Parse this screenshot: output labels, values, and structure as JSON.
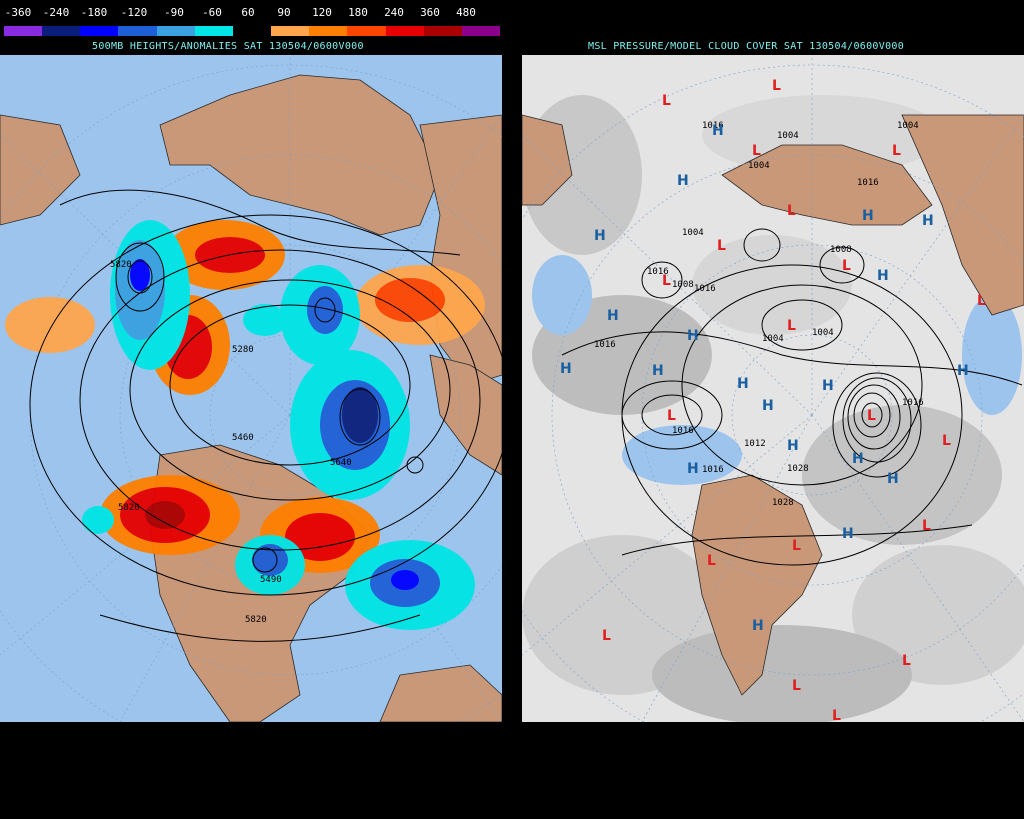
{
  "legend": {
    "ticks": [
      "-360",
      "-240",
      "-180",
      "-120",
      "-90",
      "-60",
      "60",
      "90",
      "120",
      "180",
      "240",
      "360",
      "480"
    ],
    "colors": [
      "#8a2be2",
      "#0b1f7a",
      "#0000ff",
      "#1e5fd6",
      "#3aa0e0",
      "#00e5e5",
      "#000000",
      "#ffa64d",
      "#ff7f00",
      "#ff4500",
      "#e60000",
      "#aa0000",
      "#8b008b"
    ]
  },
  "left_panel": {
    "title": "500MB HEIGHTS/ANOMALIES SAT 130504/0600V000",
    "contour_labels": [
      "5820",
      "5280",
      "5460",
      "5640",
      "5820",
      "5490",
      "5820"
    ]
  },
  "right_panel": {
    "title": "MSL PRESSURE/MODEL CLOUD COVER SAT 130504/0600V000",
    "isobar_labels": [
      "1016",
      "1004",
      "1004",
      "1004",
      "1016",
      "1004",
      "1016",
      "1008",
      "1016",
      "1016",
      "1004",
      "1004",
      "1016",
      "1016",
      "1012",
      "1028",
      "1028",
      "1016",
      "1008"
    ],
    "high_symbol": "H",
    "low_symbol": "L"
  },
  "colors": {
    "ocean": "#9cc4ec",
    "land": "#c89878",
    "title_cyan": "#7ef0f0",
    "high_blue": "#1a5fa0",
    "low_red": "#e02020"
  }
}
